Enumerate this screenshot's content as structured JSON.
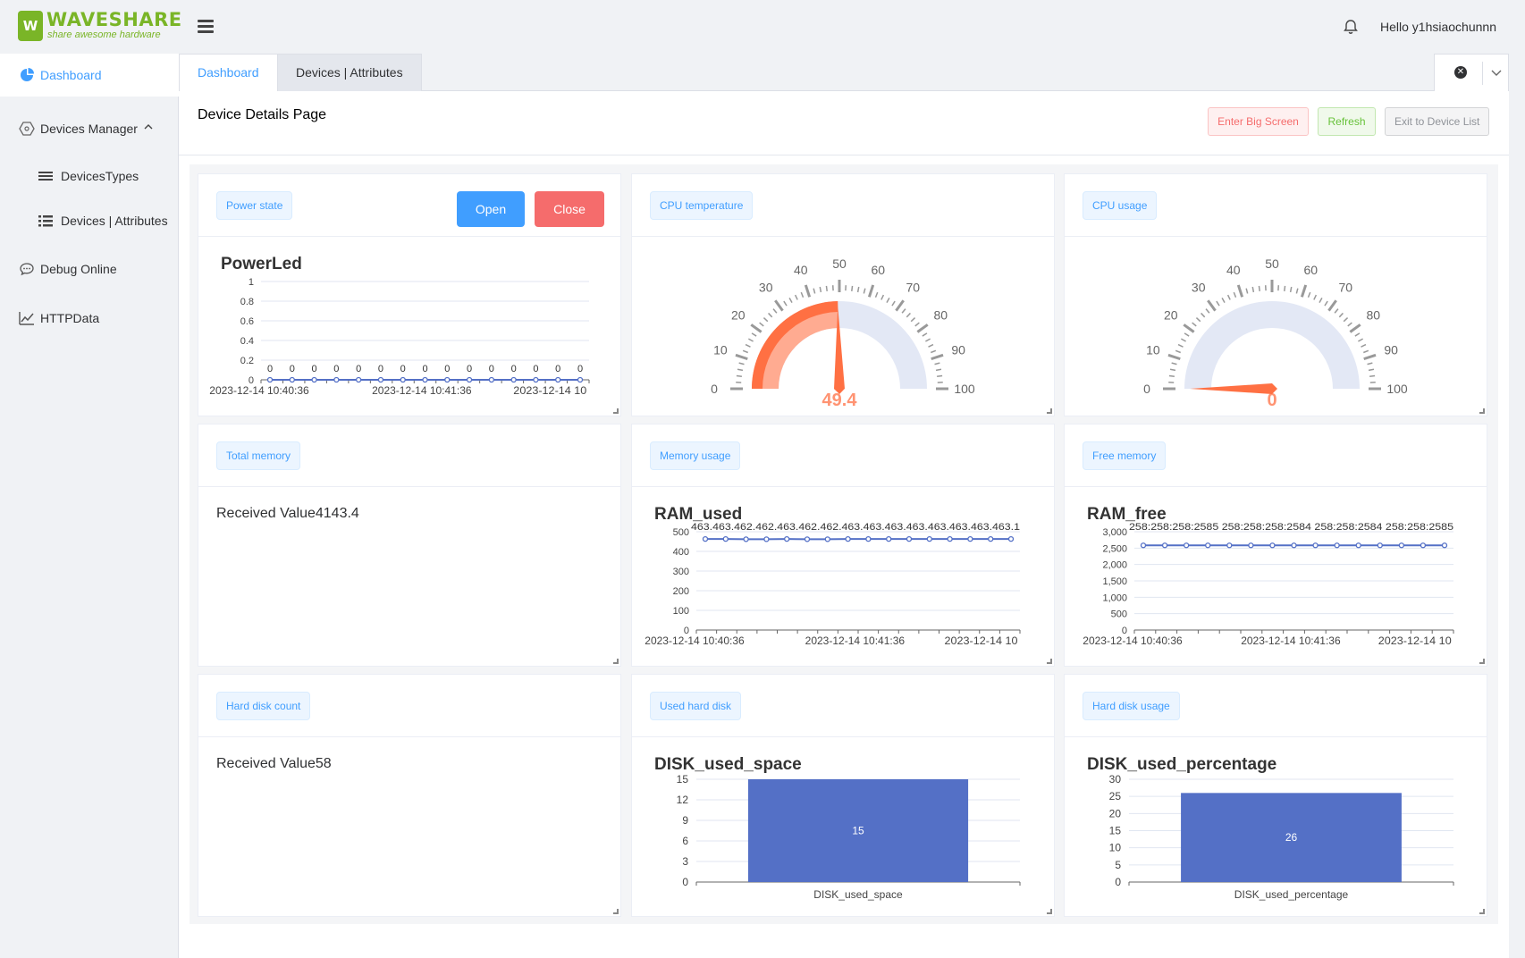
{
  "header": {
    "logo_brand": "WAVESHARE",
    "logo_tagline": "share awesome hardware",
    "greeting": "Hello y1hsiaochunnn"
  },
  "sidebar": {
    "items": [
      {
        "label": "Dashboard",
        "icon": "pie-chart-icon"
      },
      {
        "label": "Devices Manager",
        "icon": "hexagon-icon"
      },
      {
        "label": "DevicesTypes",
        "icon": "menu-icon"
      },
      {
        "label": "Devices | Attributes",
        "icon": "list-icon"
      },
      {
        "label": "Debug Online",
        "icon": "chat-icon"
      },
      {
        "label": "HTTPData",
        "icon": "line-chart-icon"
      }
    ]
  },
  "tabs": [
    {
      "label": "Dashboard"
    },
    {
      "label": "Devices | Attributes"
    }
  ],
  "page": {
    "title": "Device Details Page",
    "buttons": {
      "big_screen": "Enter Big Screen",
      "refresh": "Refresh",
      "exit": "Exit to Device List"
    }
  },
  "cards": {
    "power": {
      "label": "Power state",
      "open": "Open",
      "close": "Close"
    },
    "cpu_temp": {
      "label": "CPU temperature"
    },
    "cpu_usage": {
      "label": "CPU usage"
    },
    "total_memory": {
      "label": "Total memory",
      "value_text": "Received Value4143.4"
    },
    "memory_usage": {
      "label": "Memory usage"
    },
    "free_memory": {
      "label": "Free memory"
    },
    "disk_count": {
      "label": "Hard disk count",
      "value_text": "Received Value58"
    },
    "used_disk": {
      "label": "Used hard disk"
    },
    "disk_usage": {
      "label": "Hard disk usage"
    }
  },
  "colors": {
    "accent": "#409eff",
    "series": "#5470c6",
    "gauge": "#ff7043",
    "danger": "#f56c6c",
    "brand": "#7ab527"
  },
  "chart_data": [
    {
      "id": "power",
      "type": "line",
      "title": "PowerLed",
      "x_ticks": [
        "2023-12-14 10:40:36",
        "2023-12-14 10:41:36",
        "2023-12-14 10"
      ],
      "y_ticks": [
        "0",
        "0.2",
        "0.4",
        "0.6",
        "0.8",
        "1"
      ],
      "ylim": [
        0,
        1
      ],
      "point_labels": [
        "0",
        "0",
        "0",
        "0",
        "0",
        "0",
        "0",
        "0",
        "0",
        "0",
        "0",
        "0",
        "0",
        "0",
        "0"
      ],
      "values": [
        0,
        0,
        0,
        0,
        0,
        0,
        0,
        0,
        0,
        0,
        0,
        0,
        0,
        0,
        0
      ]
    },
    {
      "id": "cpu_temp",
      "type": "gauge",
      "value": 49.4,
      "value_label": "49.4",
      "range": [
        0,
        100
      ],
      "ticks": [
        "0",
        "10",
        "20",
        "30",
        "40",
        "50",
        "60",
        "70",
        "80",
        "90",
        "100"
      ]
    },
    {
      "id": "cpu_usage",
      "type": "gauge",
      "value": 0,
      "value_label": "0",
      "range": [
        0,
        100
      ],
      "ticks": [
        "0",
        "10",
        "20",
        "30",
        "40",
        "50",
        "60",
        "70",
        "80",
        "90",
        "100"
      ]
    },
    {
      "id": "ram_used",
      "type": "line",
      "title": "RAM_used",
      "x_ticks": [
        "2023-12-14 10:40:36",
        "2023-12-14 10:41:36",
        "2023-12-14 10"
      ],
      "y_ticks": [
        "0",
        "100",
        "200",
        "300",
        "400",
        "500"
      ],
      "ylim": [
        0,
        500
      ],
      "label_strip": "463.463.462.462.463.462.462.463.463.463.463.463.463.463.463.1",
      "values": [
        463,
        463,
        462,
        462,
        463,
        462,
        462,
        463,
        463,
        463,
        463,
        463,
        463,
        463,
        463,
        463
      ]
    },
    {
      "id": "ram_free",
      "type": "line",
      "title": "RAM_free",
      "x_ticks": [
        "2023-12-14 10:40:36",
        "2023-12-14 10:41:36",
        "2023-12-14 10"
      ],
      "y_ticks": [
        "0",
        "500",
        "1,000",
        "1,500",
        "2,000",
        "2,500",
        "3,000"
      ],
      "ylim": [
        0,
        3000
      ],
      "label_strip": "258:258:258:2585 258:258:258:2584 258:258:2584 258:258:2585",
      "values": [
        2585,
        2585,
        2585,
        2585,
        2585,
        2585,
        2585,
        2584,
        2585,
        2585,
        2584,
        2585,
        2585,
        2585,
        2585
      ]
    },
    {
      "id": "disk_used_space",
      "type": "bar",
      "title": "DISK_used_space",
      "categories": [
        "DISK_used_space"
      ],
      "values": [
        15
      ],
      "value_labels": [
        "15"
      ],
      "y_ticks": [
        "0",
        "3",
        "6",
        "9",
        "12",
        "15"
      ],
      "ylim": [
        0,
        15
      ]
    },
    {
      "id": "disk_used_percentage",
      "type": "bar",
      "title": "DISK_used_percentage",
      "categories": [
        "DISK_used_percentage"
      ],
      "values": [
        26
      ],
      "value_labels": [
        "26"
      ],
      "y_ticks": [
        "0",
        "5",
        "10",
        "15",
        "20",
        "25",
        "30"
      ],
      "ylim": [
        0,
        30
      ]
    }
  ]
}
